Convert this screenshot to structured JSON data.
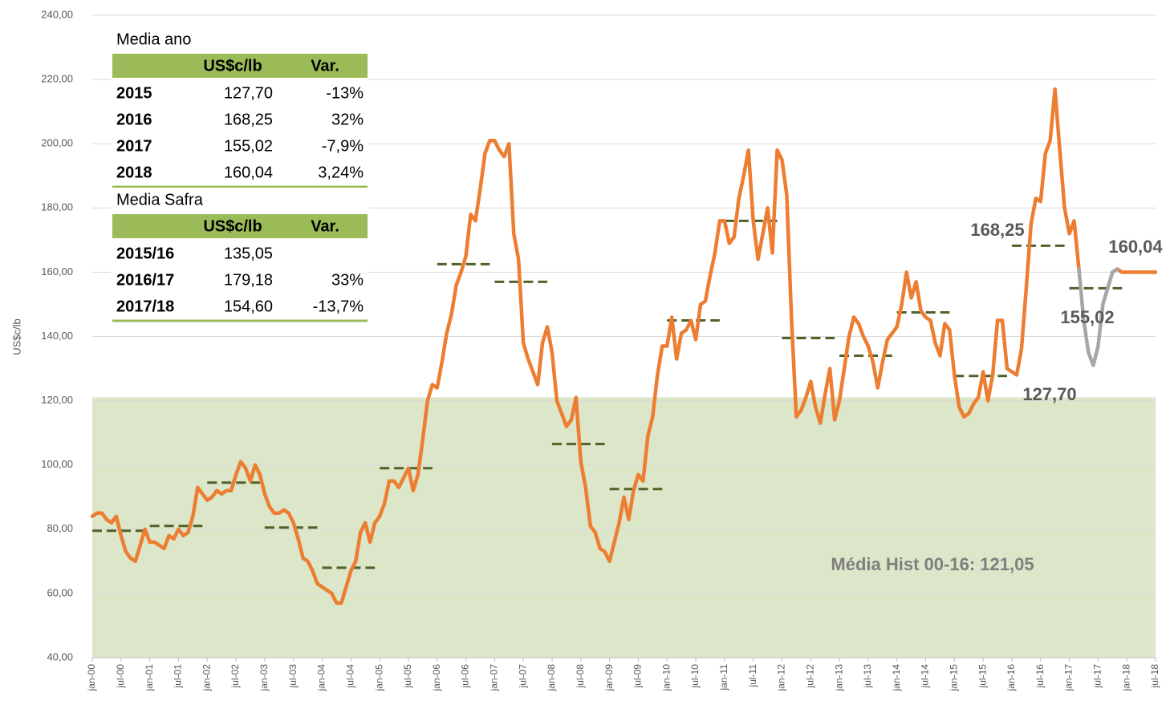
{
  "chart_data": {
    "type": "line",
    "ylabel": "US$c/lb",
    "ylim": [
      40,
      240
    ],
    "yticks": [
      {
        "value": 40,
        "label": "40,00"
      },
      {
        "value": 60,
        "label": "60,00"
      },
      {
        "value": 80,
        "label": "80,00"
      },
      {
        "value": 100,
        "label": "100,00"
      },
      {
        "value": 120,
        "label": "120,00"
      },
      {
        "value": 140,
        "label": "140,00"
      },
      {
        "value": 160,
        "label": "160,00"
      },
      {
        "value": 180,
        "label": "180,00"
      },
      {
        "value": 200,
        "label": "200,00"
      },
      {
        "value": 220,
        "label": "220,00"
      },
      {
        "value": 240,
        "label": "240,00"
      }
    ],
    "grid": true,
    "categories": [
      "jan-00",
      null,
      null,
      null,
      null,
      null,
      "jul-00",
      null,
      null,
      null,
      null,
      null,
      "jan-01",
      null,
      null,
      null,
      null,
      null,
      "jul-01",
      null,
      null,
      null,
      null,
      null,
      "jan-02",
      null,
      null,
      null,
      null,
      null,
      "jul-02",
      null,
      null,
      null,
      null,
      null,
      "jan-03",
      null,
      null,
      null,
      null,
      null,
      "jul-03",
      null,
      null,
      null,
      null,
      null,
      "jan-04",
      null,
      null,
      null,
      null,
      null,
      "jul-04",
      null,
      null,
      null,
      null,
      null,
      "jan-05",
      null,
      null,
      null,
      null,
      null,
      "jul-05",
      null,
      null,
      null,
      null,
      null,
      "jan-06",
      null,
      null,
      null,
      null,
      null,
      "jul-06",
      null,
      null,
      null,
      null,
      null,
      "jan-07",
      null,
      null,
      null,
      null,
      null,
      "jul-07",
      null,
      null,
      null,
      null,
      null,
      "jan-08",
      null,
      null,
      null,
      null,
      null,
      "jul-08",
      null,
      null,
      null,
      null,
      null,
      "jan-09",
      null,
      null,
      null,
      null,
      null,
      "jul-09",
      null,
      null,
      null,
      null,
      null,
      "jan-10",
      null,
      null,
      null,
      null,
      null,
      "jul-10",
      null,
      null,
      null,
      null,
      null,
      "jan-11",
      null,
      null,
      null,
      null,
      null,
      "jul-11",
      null,
      null,
      null,
      null,
      null,
      "jan-12",
      null,
      null,
      null,
      null,
      null,
      "jul-12",
      null,
      null,
      null,
      null,
      null,
      "jan-13",
      null,
      null,
      null,
      null,
      null,
      "jul-13",
      null,
      null,
      null,
      null,
      null,
      "jan-14",
      null,
      null,
      null,
      null,
      null,
      "jul-14",
      null,
      null,
      null,
      null,
      null,
      "jan-15",
      null,
      null,
      null,
      null,
      null,
      "jul-15",
      null,
      null,
      null,
      null,
      null,
      "jan-16",
      null,
      null,
      null,
      null,
      null,
      "jul-16",
      null,
      null,
      null,
      null,
      null,
      "jan-17",
      null,
      null,
      null,
      null,
      null,
      "jul-17",
      null,
      null,
      null,
      null,
      null,
      "jan-18",
      null,
      null,
      null,
      null,
      null,
      "jul-18"
    ],
    "series": [
      {
        "color": "#ed7d31",
        "values": [
          84,
          85,
          85,
          83,
          82,
          84,
          78,
          73,
          71,
          70,
          75,
          80,
          76,
          76,
          75,
          74,
          78,
          77,
          80,
          78,
          79,
          84,
          93,
          91,
          89,
          90,
          92,
          91,
          92,
          92,
          97,
          101,
          99,
          95,
          100,
          97,
          91,
          87,
          85,
          85,
          86,
          85,
          82,
          77,
          71,
          70,
          67,
          63,
          62,
          61,
          60,
          57,
          57,
          62,
          67,
          70,
          79,
          82,
          76,
          82,
          84,
          88,
          95,
          95,
          93,
          96,
          99,
          92,
          97,
          108,
          120,
          125,
          124,
          132,
          141,
          147,
          156,
          160,
          165,
          178,
          176,
          186,
          197,
          201,
          201,
          198,
          196,
          200,
          172,
          164,
          138,
          133,
          129,
          125,
          138,
          143,
          135,
          120,
          116,
          112,
          114,
          121,
          101,
          93,
          81,
          79,
          74,
          73,
          70,
          76,
          82,
          90,
          83,
          92,
          97,
          95,
          109,
          115,
          128,
          137,
          137,
          146,
          133,
          141,
          142,
          145,
          139,
          150,
          151,
          159,
          166,
          176,
          176,
          169,
          171,
          183,
          190,
          198,
          176,
          164,
          172,
          180,
          166,
          198,
          195,
          184,
          145,
          115,
          117,
          121,
          126,
          118,
          113,
          122,
          130,
          114,
          120,
          130,
          140,
          146,
          144,
          140,
          137,
          132,
          124,
          132,
          139,
          141,
          143,
          150,
          160,
          152,
          157,
          148,
          146,
          145,
          138,
          134,
          144,
          142,
          128,
          118,
          115,
          116,
          119,
          121,
          129,
          120,
          128,
          145,
          145,
          130,
          129,
          128,
          136,
          155,
          175,
          183,
          182,
          197,
          201,
          217,
          198,
          180,
          172,
          176,
          161,
          null,
          null,
          null,
          null,
          null,
          null,
          null,
          161,
          160,
          160,
          160,
          160,
          160,
          160,
          160,
          160
        ]
      },
      {
        "color": "#a6a6a6",
        "values": [
          null,
          null,
          null,
          null,
          null,
          null,
          null,
          null,
          null,
          null,
          null,
          null,
          null,
          null,
          null,
          null,
          null,
          null,
          null,
          null,
          null,
          null,
          null,
          null,
          null,
          null,
          null,
          null,
          null,
          null,
          null,
          null,
          null,
          null,
          null,
          null,
          null,
          null,
          null,
          null,
          null,
          null,
          null,
          null,
          null,
          null,
          null,
          null,
          null,
          null,
          null,
          null,
          null,
          null,
          null,
          null,
          null,
          null,
          null,
          null,
          null,
          null,
          null,
          null,
          null,
          null,
          null,
          null,
          null,
          null,
          null,
          null,
          null,
          null,
          null,
          null,
          null,
          null,
          null,
          null,
          null,
          null,
          null,
          null,
          null,
          null,
          null,
          null,
          null,
          null,
          null,
          null,
          null,
          null,
          null,
          null,
          null,
          null,
          null,
          null,
          null,
          null,
          null,
          null,
          null,
          null,
          null,
          null,
          null,
          null,
          null,
          null,
          null,
          null,
          null,
          null,
          null,
          null,
          null,
          null,
          null,
          null,
          null,
          null,
          null,
          null,
          null,
          null,
          null,
          null,
          null,
          null,
          null,
          null,
          null,
          null,
          null,
          null,
          null,
          null,
          null,
          null,
          null,
          null,
          null,
          null,
          null,
          null,
          null,
          null,
          null,
          null,
          null,
          null,
          null,
          null,
          null,
          null,
          null,
          null,
          null,
          null,
          null,
          null,
          null,
          null,
          null,
          null,
          null,
          null,
          null,
          null,
          null,
          null,
          null,
          null,
          null,
          null,
          null,
          null,
          null,
          null,
          null,
          null,
          null,
          null,
          null,
          null,
          null,
          null,
          null,
          null,
          null,
          null,
          null,
          null,
          null,
          null,
          null,
          null,
          null,
          null,
          null,
          null,
          null,
          null,
          161,
          145,
          135,
          131,
          137,
          150,
          155,
          160,
          161,
          null,
          null,
          null,
          null,
          null,
          null,
          null,
          null
        ]
      }
    ],
    "annual_means": [
      79.5,
      81,
      94.5,
      80.5,
      68,
      99,
      162.5,
      157,
      106.5,
      92.5,
      145,
      176,
      139.5,
      134,
      147.5,
      127.7,
      168.25,
      155.02,
      160.04
    ],
    "annual_means_color": "#4f6228",
    "hist_mean": {
      "value": 121.05,
      "label": "Média Hist 00-16: 121,05"
    },
    "hist_color": "#dce6c8",
    "annotations": [
      "168,25",
      "155,02",
      "160,04",
      "127,70"
    ],
    "tables": [
      {
        "title": "Media ano",
        "columns": [
          "US$c/lb",
          "Var."
        ],
        "rows": [
          [
            "2015",
            "127,70",
            "-13%"
          ],
          [
            "2016",
            "168,25",
            "32%"
          ],
          [
            "2017",
            "155,02",
            "-7,9%"
          ],
          [
            "2018",
            "160,04",
            "3,24%"
          ]
        ]
      },
      {
        "title": "Media Safra",
        "columns": [
          "US$c/lb",
          "Var."
        ],
        "rows": [
          [
            "2015/16",
            "135,05",
            null
          ],
          [
            "2016/17",
            "179,18",
            "33%"
          ],
          [
            "2017/18",
            "154,60",
            "-13,7%"
          ]
        ]
      }
    ]
  }
}
